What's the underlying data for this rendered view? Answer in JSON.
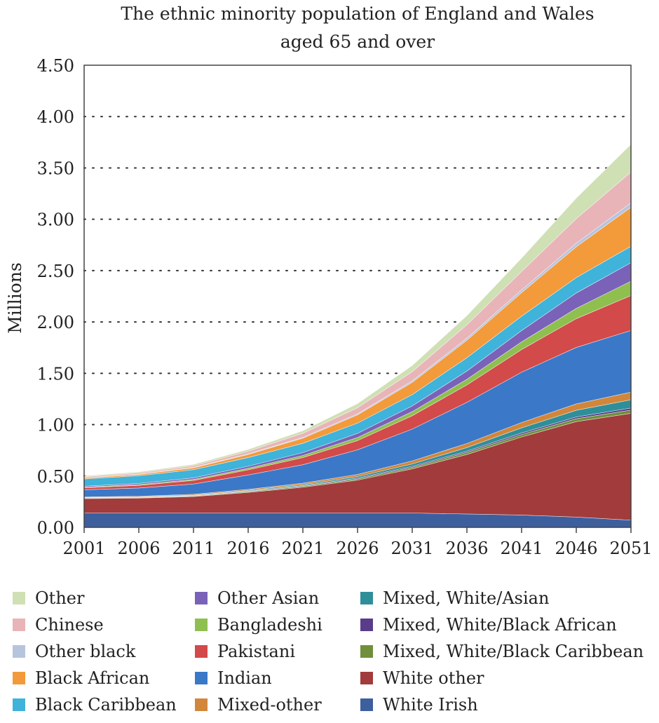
{
  "chart_data": {
    "type": "area",
    "stacked": true,
    "title": "The ethnic minority population of England and Wales",
    "subtitle": "aged 65 and over",
    "ylabel": "Millions",
    "xlabel": "",
    "x": [
      2001,
      2006,
      2011,
      2016,
      2021,
      2026,
      2031,
      2036,
      2041,
      2046,
      2051
    ],
    "x_tick_labels": [
      "2001",
      "2006",
      "2011",
      "2016",
      "2021",
      "2026",
      "2031",
      "2036",
      "2041",
      "2046",
      "2051"
    ],
    "y_tick_labels": [
      "0.00",
      "0.50",
      "1.00",
      "1.50",
      "2.00",
      "2.50",
      "3.00",
      "3.50",
      "4.00",
      "4.50"
    ],
    "ylim": [
      0,
      4.5
    ],
    "grid": "horizontal-dotted",
    "legend_position": "bottom",
    "legend_order": [
      "Other",
      "Other Asian",
      "Mixed, White/Asian",
      "Chinese",
      "Bangladeshi",
      "Mixed, White/Black African",
      "Other black",
      "Pakistani",
      "Mixed, White/Black Caribbean",
      "Black African",
      "Indian",
      "White other",
      "Black Caribbean",
      "Mixed-other",
      "White Irish"
    ],
    "series": [
      {
        "name": "White Irish",
        "color": "#3e5f9e",
        "values": [
          0.14,
          0.14,
          0.14,
          0.14,
          0.14,
          0.14,
          0.14,
          0.13,
          0.12,
          0.1,
          0.07
        ]
      },
      {
        "name": "White other",
        "color": "#a23b3b",
        "values": [
          0.14,
          0.145,
          0.16,
          0.2,
          0.25,
          0.32,
          0.43,
          0.58,
          0.76,
          0.93,
          1.04
        ]
      },
      {
        "name": "Mixed, White/Black Caribbean",
        "color": "#6f8f3c",
        "values": [
          0.005,
          0.005,
          0.005,
          0.008,
          0.01,
          0.012,
          0.015,
          0.02,
          0.024,
          0.028,
          0.032
        ]
      },
      {
        "name": "Mixed, White/Black African",
        "color": "#5a3d8a",
        "values": [
          0.003,
          0.003,
          0.004,
          0.005,
          0.006,
          0.008,
          0.01,
          0.012,
          0.015,
          0.017,
          0.02
        ]
      },
      {
        "name": "Mixed, White/Asian",
        "color": "#2e8f9a",
        "values": [
          0.003,
          0.004,
          0.005,
          0.007,
          0.01,
          0.015,
          0.022,
          0.035,
          0.05,
          0.065,
          0.08
        ]
      },
      {
        "name": "Mixed-other",
        "color": "#d2863a",
        "values": [
          0.005,
          0.006,
          0.008,
          0.01,
          0.014,
          0.02,
          0.03,
          0.04,
          0.052,
          0.062,
          0.075
        ]
      },
      {
        "name": "Indian",
        "color": "#3b78c8",
        "values": [
          0.07,
          0.08,
          0.1,
          0.14,
          0.18,
          0.24,
          0.31,
          0.4,
          0.49,
          0.55,
          0.6
        ]
      },
      {
        "name": "Pakistani",
        "color": "#d24a4a",
        "values": [
          0.02,
          0.025,
          0.035,
          0.05,
          0.07,
          0.09,
          0.13,
          0.17,
          0.22,
          0.28,
          0.34
        ]
      },
      {
        "name": "Bangladeshi",
        "color": "#8fbf4f",
        "values": [
          0.005,
          0.008,
          0.01,
          0.015,
          0.02,
          0.03,
          0.04,
          0.055,
          0.075,
          0.1,
          0.14
        ]
      },
      {
        "name": "Other Asian",
        "color": "#7a62b8",
        "values": [
          0.01,
          0.012,
          0.015,
          0.02,
          0.028,
          0.04,
          0.055,
          0.08,
          0.11,
          0.15,
          0.18
        ]
      },
      {
        "name": "Black Caribbean",
        "color": "#3fb3d9",
        "values": [
          0.07,
          0.075,
          0.08,
          0.085,
          0.09,
          0.1,
          0.11,
          0.13,
          0.14,
          0.15,
          0.16
        ]
      },
      {
        "name": "Black African",
        "color": "#f39a3a",
        "values": [
          0.01,
          0.012,
          0.018,
          0.03,
          0.05,
          0.08,
          0.12,
          0.17,
          0.23,
          0.3,
          0.38
        ]
      },
      {
        "name": "Other black",
        "color": "#b7c4de",
        "values": [
          0.002,
          0.003,
          0.004,
          0.006,
          0.008,
          0.01,
          0.014,
          0.02,
          0.026,
          0.034,
          0.043
        ]
      },
      {
        "name": "Chinese",
        "color": "#e8b4b8",
        "values": [
          0.01,
          0.012,
          0.016,
          0.025,
          0.04,
          0.06,
          0.09,
          0.13,
          0.18,
          0.24,
          0.3
        ]
      },
      {
        "name": "Other",
        "color": "#cfe0b4",
        "values": [
          0.008,
          0.01,
          0.013,
          0.018,
          0.025,
          0.04,
          0.06,
          0.09,
          0.13,
          0.2,
          0.27
        ]
      }
    ]
  }
}
